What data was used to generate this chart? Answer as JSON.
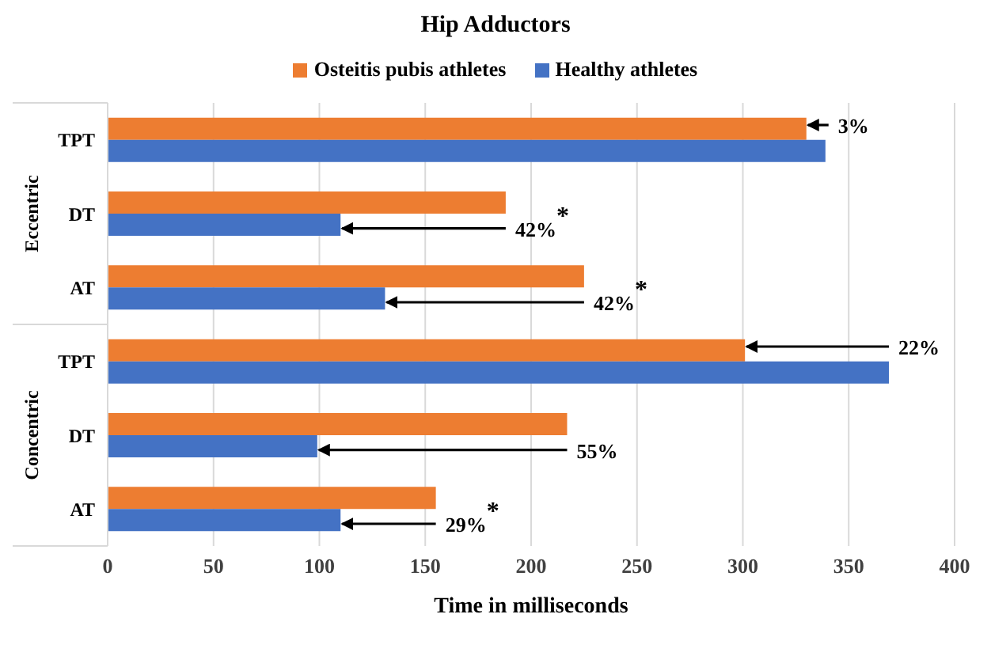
{
  "chart_data": {
    "type": "bar",
    "orientation": "horizontal",
    "title": "Hip Adductors",
    "xlabel": "Time in milliseconds",
    "categories": [
      "TPT",
      "DT",
      "AT",
      "TPT",
      "DT",
      "AT"
    ],
    "series": [
      {
        "name": "Osteitis pubis athletes",
        "color": "#ed7d31",
        "values": [
          330,
          188,
          225,
          301,
          217,
          155
        ]
      },
      {
        "name": "Healthy athletes",
        "color": "#4472c4",
        "values": [
          339,
          110,
          131,
          369,
          99,
          110
        ]
      }
    ],
    "xlim": [
      0,
      400
    ],
    "xticks": [
      0,
      50,
      100,
      150,
      200,
      250,
      300,
      350,
      400
    ],
    "grid": "x",
    "legend": "top",
    "annotations": [
      {
        "text": "3%",
        "x": 330
      },
      {
        "text": "42%$^{*}$",
        "x": 110
      },
      {
        "text": "42%$^{*}$",
        "x": 131
      },
      {
        "text": "22%",
        "x": 301
      },
      {
        "text": "55%",
        "x": 99
      },
      {
        "text": "29%$^{*}$",
        "x": 110
      },
      "Eccentric",
      "Concentric"
    ]
  }
}
